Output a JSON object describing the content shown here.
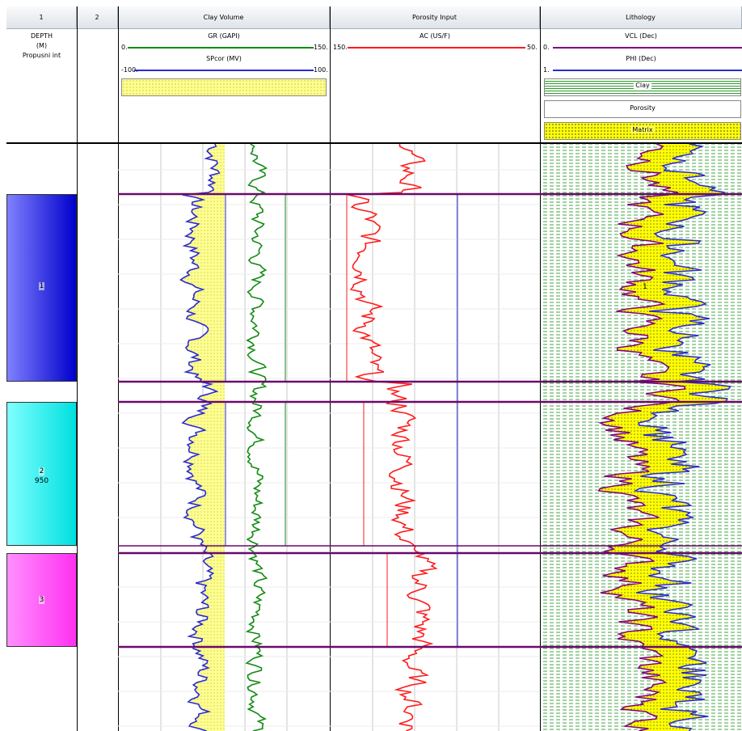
{
  "track_headers": [
    "1",
    "2",
    "Clay Volume",
    "Porosity Input",
    "Lithology"
  ],
  "depth_track": {
    "line1": "DEPTH",
    "line2": "(M)",
    "line3": "Propusni int"
  },
  "curves": {
    "gr": {
      "name": "GR (GAPI)",
      "min": "0.",
      "max": "150.",
      "color": "#138a13"
    },
    "sp": {
      "name": "SPcor (MV)",
      "min": "-100.",
      "max": "100.",
      "color": "#2a2ad0"
    },
    "ac": {
      "name": "AC (US/F)",
      "min": "150.",
      "max": "50.",
      "color": "#ff1a1a"
    },
    "vcl": {
      "name": "VCL (Dec)",
      "min": "0.",
      "max": "",
      "color": "#800080"
    },
    "phi": {
      "name": "PHI (Dec)",
      "min": "1.",
      "max": "",
      "color": "#2a2ad0"
    }
  },
  "legend": {
    "clay": "Clay",
    "porosity": "Porosity",
    "matrix": "Matrix"
  },
  "zones": [
    {
      "label": "1",
      "depth": "",
      "color_top": "#7a7aff",
      "color_bottom": "#0000c8"
    },
    {
      "label": "2",
      "depth": "950",
      "color_top": "#7ff7f7",
      "color_bottom": "#00e6e6"
    },
    {
      "label": "3",
      "depth": "",
      "color_top": "#ff90ff",
      "color_bottom": "#ff2cf0"
    }
  ],
  "lithology_zone_label": "1",
  "colors": {
    "boundary": "#6a0a6a",
    "fill_yellow": "#ffff00",
    "clay_dash": "#2e9a2e"
  },
  "chart_data": {
    "type": "line",
    "title": "",
    "tracks": [
      "Clay Volume",
      "Porosity Input",
      "Lithology"
    ],
    "depth_unit": "M",
    "depth_label": "950",
    "zones": [
      "1",
      "2",
      "3"
    ],
    "series": [
      {
        "name": "GR (GAPI)",
        "range": [
          0,
          150
        ]
      },
      {
        "name": "SPcor (MV)",
        "range": [
          -100,
          100
        ]
      },
      {
        "name": "AC (US/F)",
        "range": [
          150,
          50
        ]
      },
      {
        "name": "VCL (Dec)",
        "range": [
          0,
          1
        ]
      },
      {
        "name": "PHI (Dec)",
        "range": [
          1,
          0
        ]
      }
    ]
  }
}
